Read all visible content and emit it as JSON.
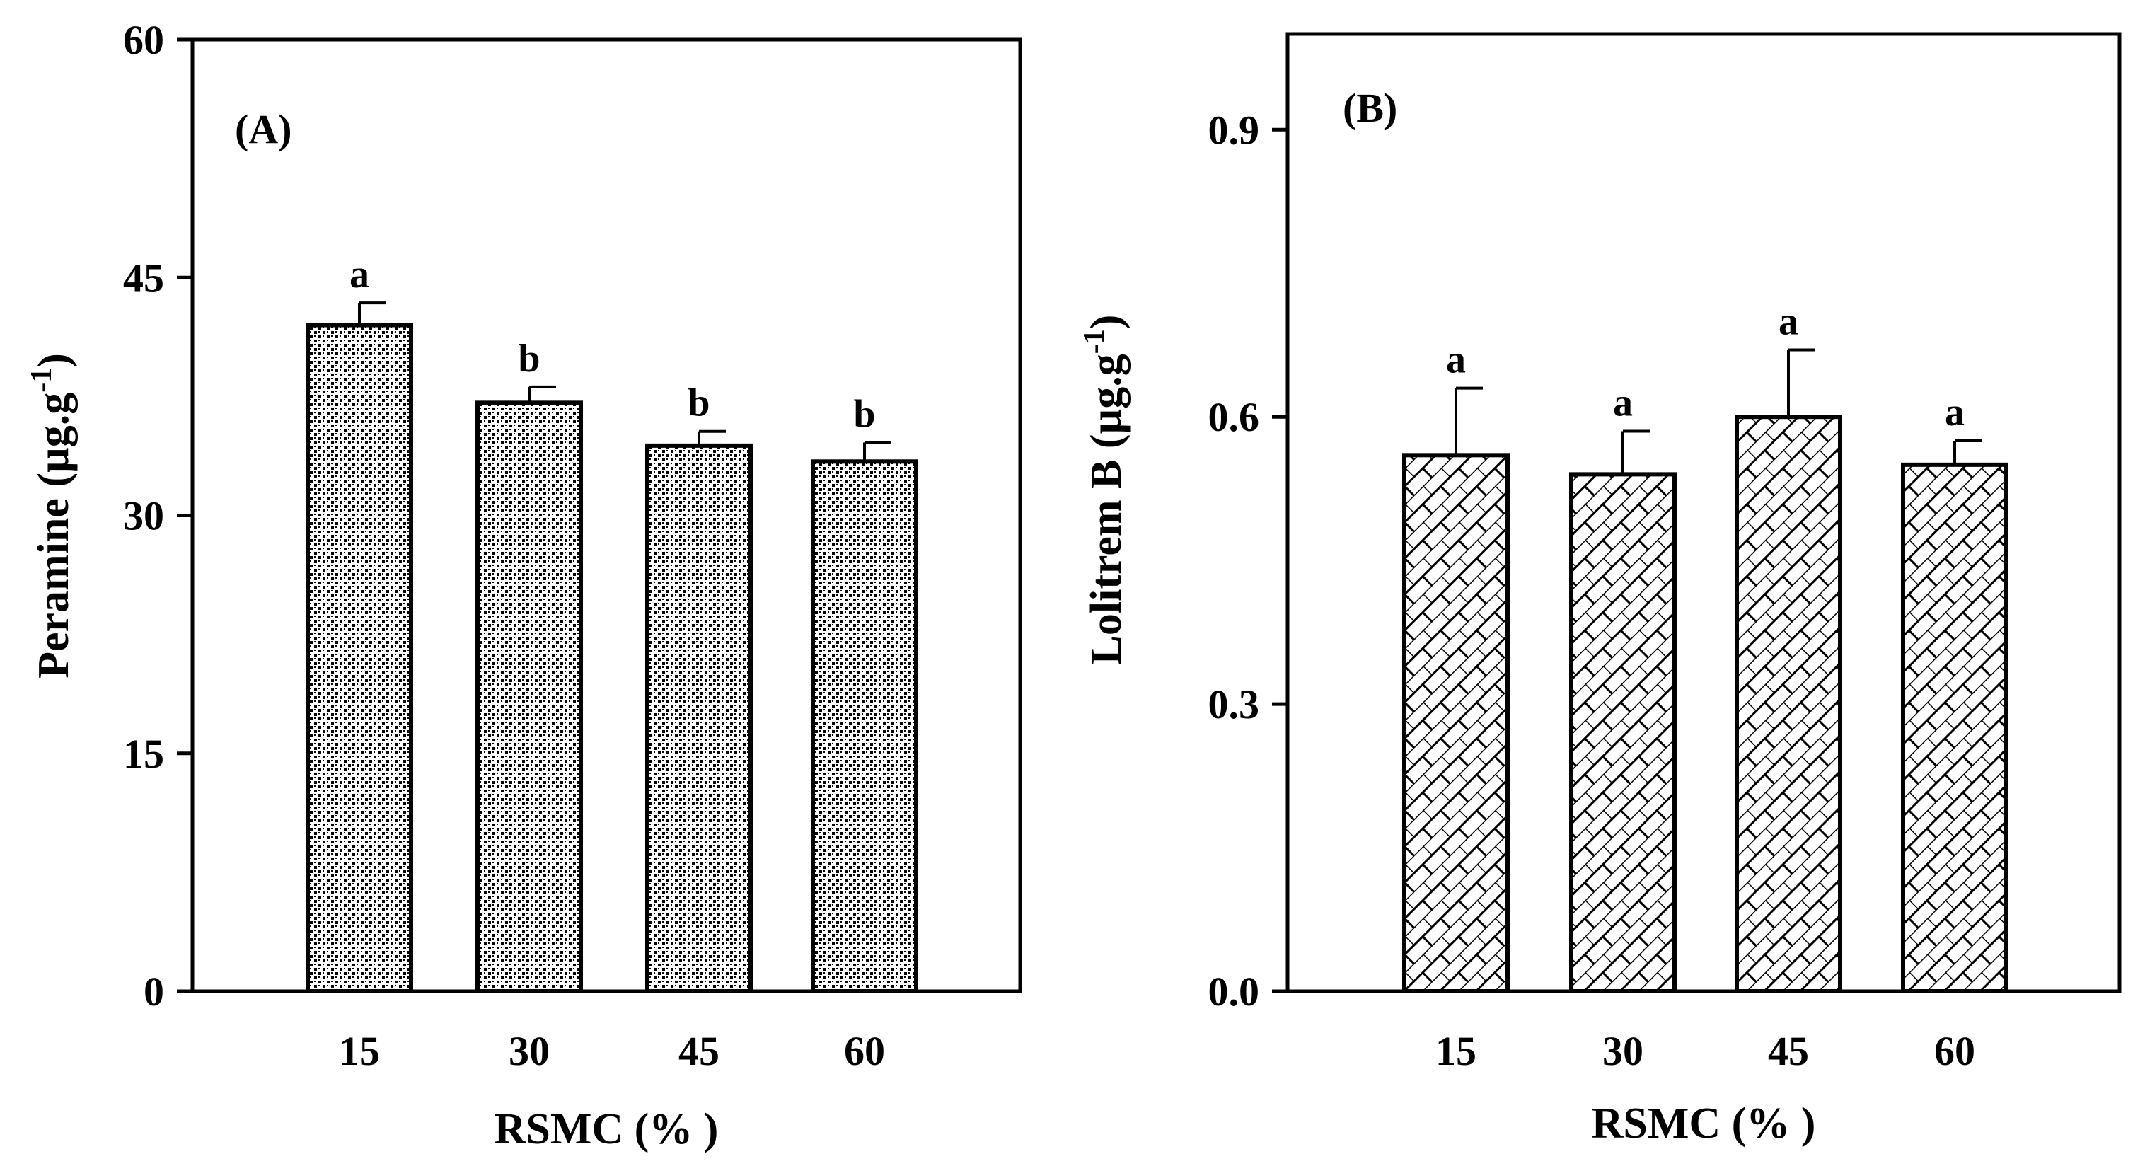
{
  "chart_data": [
    {
      "type": "bar",
      "panel_label": "(A)",
      "categories": [
        "15",
        "30",
        "45",
        "60"
      ],
      "values": [
        42.0,
        37.1,
        34.4,
        33.4
      ],
      "errors": [
        1.4,
        1.0,
        0.9,
        1.2
      ],
      "significance": [
        "a",
        "b",
        "b",
        "b"
      ],
      "ylabel": "Peramine (µg.g",
      "ylabel_sup": "-1",
      "ylabel_close": ")",
      "xlabel": "RSMC (% )",
      "ylim": [
        0,
        60
      ],
      "yticks": [
        0,
        15,
        30,
        45,
        60
      ],
      "ytick_labels": [
        "0",
        "15",
        "30",
        "45",
        "60"
      ],
      "grid": false,
      "fill_pattern": "dense-checker"
    },
    {
      "type": "bar",
      "panel_label": "(B)",
      "categories": [
        "15",
        "30",
        "45",
        "60"
      ],
      "values": [
        0.56,
        0.54,
        0.6,
        0.55
      ],
      "errors": [
        0.07,
        0.045,
        0.07,
        0.025
      ],
      "significance": [
        "a",
        "a",
        "a",
        "a"
      ],
      "ylabel": "Lolitrem B  (µg.g",
      "ylabel_sup": "-1",
      "ylabel_close": ")",
      "xlabel": "RSMC (% )",
      "ylim": [
        0,
        1.0
      ],
      "yticks": [
        0,
        0.3,
        0.6,
        0.9
      ],
      "ytick_labels": [
        "0.0",
        "0.3",
        "0.6",
        "0.9"
      ],
      "grid": false,
      "fill_pattern": "diagonal-brick"
    }
  ],
  "colors": {
    "axis": "#000000",
    "bar_fill": "#ffffff",
    "pattern": "#000000"
  }
}
